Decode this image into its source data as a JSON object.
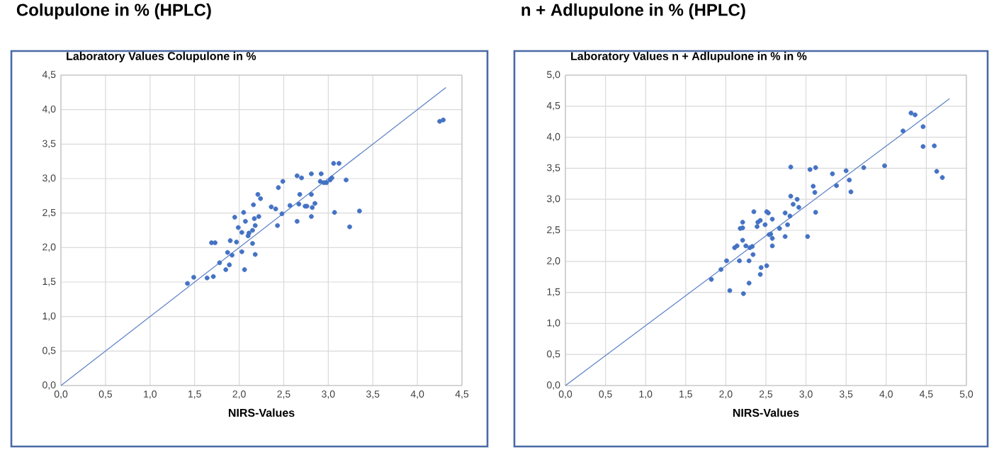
{
  "chart_data": [
    {
      "type": "scatter",
      "title": "Colupulone in % (HPLC)",
      "ylabel": "Laboratory Values Colupulone in %",
      "xlabel": "NIRS-Values",
      "xlim": [
        0,
        4.5
      ],
      "ylim": [
        0,
        4.5
      ],
      "xticks": [
        {
          "value": 0,
          "label": "0,0"
        },
        {
          "value": 0.5,
          "label": "0,5"
        },
        {
          "value": 1,
          "label": "1,0"
        },
        {
          "value": 1.5,
          "label": "1,5"
        },
        {
          "value": 2,
          "label": "2,0"
        },
        {
          "value": 2.5,
          "label": "2,5"
        },
        {
          "value": 3,
          "label": "3,0"
        },
        {
          "value": 3.5,
          "label": "3,5"
        },
        {
          "value": 4,
          "label": "4,0"
        },
        {
          "value": 4.5,
          "label": "4,5"
        }
      ],
      "yticks": [
        {
          "value": 0,
          "label": "0,0"
        },
        {
          "value": 0.5,
          "label": "0,5"
        },
        {
          "value": 1,
          "label": "1,0"
        },
        {
          "value": 1.5,
          "label": "1,5"
        },
        {
          "value": 2,
          "label": "2,0"
        },
        {
          "value": 2.5,
          "label": "2,5"
        },
        {
          "value": 3,
          "label": "3,0"
        },
        {
          "value": 3.5,
          "label": "3,5"
        },
        {
          "value": 4,
          "label": "4,0"
        },
        {
          "value": 4.5,
          "label": "4,5"
        }
      ],
      "grid": true,
      "series": [
        {
          "type": "scatter",
          "marker": "circle",
          "color": "#4472c4",
          "x": [
            1.42,
            1.49,
            1.64,
            1.71,
            1.69,
            1.73,
            1.78,
            1.85,
            1.87,
            1.9,
            1.89,
            1.92,
            1.95,
            1.97,
            1.99,
            2.03,
            2.03,
            2.06,
            2.05,
            2.07,
            2.1,
            2.11,
            2.15,
            2.15,
            2.16,
            2.18,
            2.18,
            2.21,
            2.24,
            2.22,
            2.17,
            2.36,
            2.41,
            2.43,
            2.44,
            2.48,
            2.49,
            2.57,
            2.65,
            2.65,
            2.67,
            2.68,
            2.7,
            2.74,
            2.76,
            2.81,
            2.81,
            2.81,
            2.82,
            2.85,
            2.92,
            2.91,
            2.95,
            2.98,
            3.02,
            3.04,
            3.06,
            3.07,
            3.12,
            3.2,
            3.24,
            3.35,
            4.25,
            4.29
          ],
          "values": [
            1.48,
            1.57,
            1.56,
            1.58,
            2.07,
            2.07,
            1.78,
            1.68,
            1.93,
            2.1,
            1.75,
            1.89,
            2.44,
            2.08,
            2.29,
            2.22,
            1.94,
            1.68,
            2.51,
            2.38,
            2.17,
            2.21,
            2.25,
            2.06,
            2.62,
            1.9,
            2.32,
            2.77,
            2.71,
            2.45,
            2.42,
            2.59,
            2.56,
            2.32,
            2.87,
            2.49,
            2.96,
            2.61,
            3.04,
            2.38,
            2.63,
            2.77,
            3.01,
            2.6,
            2.6,
            3.07,
            2.77,
            2.45,
            2.58,
            2.64,
            3.07,
            2.96,
            2.94,
            2.94,
            2.98,
            3.01,
            3.22,
            2.51,
            3.22,
            2.98,
            2.3,
            2.53,
            3.83,
            3.85
          ]
        },
        {
          "type": "line",
          "color": "#5b7fc7",
          "x": [
            0,
            4.32
          ],
          "values": [
            0,
            4.32
          ]
        }
      ]
    },
    {
      "type": "scatter",
      "title": "n + Adlupulone in % (HPLC)",
      "ylabel": "Laboratory Values  n + Adlupulone in % in %",
      "xlabel": "NIRS-Values",
      "xlim": [
        0,
        5
      ],
      "ylim": [
        0,
        5
      ],
      "xticks": [
        {
          "value": 0,
          "label": "0,0"
        },
        {
          "value": 0.5,
          "label": "0,5"
        },
        {
          "value": 1,
          "label": "1,0"
        },
        {
          "value": 1.5,
          "label": "1,5"
        },
        {
          "value": 2,
          "label": "2,0"
        },
        {
          "value": 2.5,
          "label": "2,5"
        },
        {
          "value": 3,
          "label": "3,0"
        },
        {
          "value": 3.5,
          "label": "3,5"
        },
        {
          "value": 4,
          "label": "4,0"
        },
        {
          "value": 4.5,
          "label": "4,5"
        },
        {
          "value": 5,
          "label": "5,0"
        }
      ],
      "yticks": [
        {
          "value": 0,
          "label": "0,0"
        },
        {
          "value": 0.5,
          "label": "0,5"
        },
        {
          "value": 1,
          "label": "1,0"
        },
        {
          "value": 1.5,
          "label": "1,5"
        },
        {
          "value": 2,
          "label": "2,0"
        },
        {
          "value": 2.5,
          "label": "2,5"
        },
        {
          "value": 3,
          "label": "3,0"
        },
        {
          "value": 3.5,
          "label": "3,5"
        },
        {
          "value": 4,
          "label": "4,0"
        },
        {
          "value": 4.5,
          "label": "4,5"
        },
        {
          "value": 5,
          "label": "5,0"
        }
      ],
      "grid": true,
      "series": [
        {
          "type": "scatter",
          "marker": "circle",
          "color": "#4472c4",
          "x": [
            1.82,
            1.94,
            2.01,
            2.05,
            2.11,
            2.14,
            2.17,
            2.18,
            2.21,
            2.21,
            2.22,
            2.21,
            2.25,
            2.29,
            2.29,
            2.3,
            2.33,
            2.34,
            2.35,
            2.39,
            2.4,
            2.43,
            2.43,
            2.44,
            2.49,
            2.51,
            2.51,
            2.53,
            2.54,
            2.56,
            2.58,
            2.58,
            2.58,
            2.67,
            2.74,
            2.74,
            2.77,
            2.8,
            2.81,
            2.81,
            2.84,
            2.89,
            2.91,
            3.02,
            3.05,
            3.09,
            3.11,
            3.12,
            3.12,
            3.33,
            3.38,
            3.5,
            3.54,
            3.56,
            3.72,
            3.98,
            4.21,
            4.31,
            4.36,
            4.46,
            4.46,
            4.6,
            4.63,
            4.7
          ],
          "values": [
            1.71,
            1.87,
            2.01,
            1.53,
            2.22,
            2.25,
            2.01,
            2.53,
            2.54,
            2.63,
            1.48,
            2.34,
            2.25,
            1.65,
            2.01,
            2.22,
            2.24,
            2.11,
            2.8,
            2.56,
            2.63,
            2.66,
            1.79,
            1.9,
            2.59,
            2.8,
            1.93,
            2.78,
            2.43,
            2.44,
            2.37,
            2.25,
            2.68,
            2.53,
            2.4,
            2.78,
            2.59,
            2.73,
            3.52,
            3.05,
            2.92,
            3.0,
            2.87,
            2.4,
            3.48,
            3.21,
            3.11,
            3.51,
            2.79,
            3.41,
            3.22,
            3.46,
            3.31,
            3.12,
            3.51,
            3.54,
            4.1,
            4.39,
            4.36,
            4.17,
            3.85,
            3.86,
            3.45,
            3.35
          ]
        },
        {
          "type": "line",
          "color": "#5b7fc7",
          "x": [
            0,
            4.79
          ],
          "values": [
            0,
            4.62
          ]
        }
      ]
    }
  ]
}
